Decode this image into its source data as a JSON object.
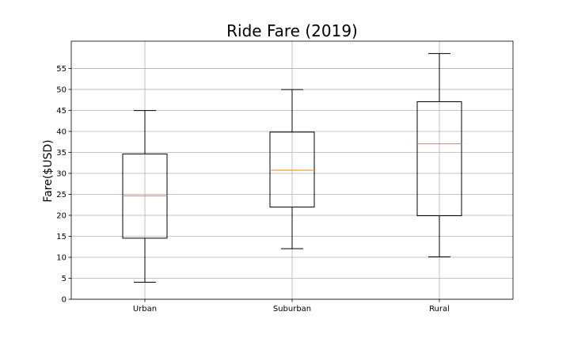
{
  "chart_data": {
    "type": "box",
    "title": "Ride Fare (2019)",
    "xlabel": "",
    "ylabel": "Fare($USD)",
    "ylim": [
      0,
      61.5
    ],
    "yticks": [
      0,
      5,
      10,
      15,
      20,
      25,
      30,
      35,
      40,
      45,
      50,
      55
    ],
    "grid": true,
    "categories": [
      "Urban",
      "Suburban",
      "Rural"
    ],
    "boxes": [
      {
        "label": "Urban",
        "whislo": 4.05,
        "q1": 14.55,
        "med": 24.64,
        "q3": 34.62,
        "whishi": 44.97
      },
      {
        "label": "Suburban",
        "whislo": 12.05,
        "q1": 21.97,
        "med": 30.75,
        "q3": 39.83,
        "whishi": 49.96
      },
      {
        "label": "Rural",
        "whislo": 10.11,
        "q1": 19.9,
        "med": 37.05,
        "q3": 47.07,
        "whishi": 58.55
      }
    ],
    "colors": {
      "median": "#ff7f0e",
      "box": "#000000",
      "grid": "#b0b0b0"
    }
  }
}
